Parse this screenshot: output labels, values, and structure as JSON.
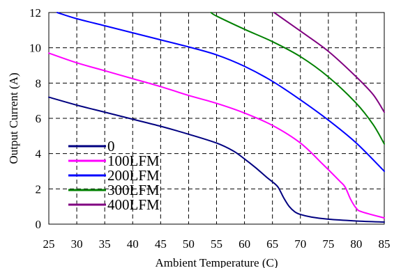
{
  "chart_data": {
    "type": "line",
    "title": "",
    "xlabel": "Ambient Temperature (C)",
    "ylabel": "Output Current (A)",
    "xlim": [
      25,
      85
    ],
    "ylim": [
      0,
      12
    ],
    "xticks": [
      25,
      30,
      35,
      40,
      45,
      50,
      55,
      60,
      65,
      70,
      75,
      80,
      85
    ],
    "yticks": [
      0,
      2,
      4,
      6,
      8,
      10,
      12
    ],
    "grid": true,
    "legend_position": "bottom-left",
    "series": [
      {
        "name": "0",
        "color": "#000080",
        "x": [
          25,
          30,
          35,
          40,
          45,
          50,
          55,
          58,
          60,
          62,
          64,
          65,
          66,
          67,
          68,
          69,
          70,
          72,
          75,
          80,
          85
        ],
        "y": [
          7.2,
          6.75,
          6.35,
          5.95,
          5.55,
          5.1,
          4.6,
          4.15,
          3.7,
          3.2,
          2.65,
          2.4,
          2.1,
          1.5,
          1.0,
          0.7,
          0.55,
          0.4,
          0.28,
          0.18,
          0.12
        ]
      },
      {
        "name": "100LFM",
        "color": "#ff00ff",
        "x": [
          25,
          30,
          35,
          40,
          45,
          50,
          55,
          60,
          65,
          70,
          74,
          77,
          78,
          79,
          80,
          81,
          85
        ],
        "y": [
          9.7,
          9.15,
          8.7,
          8.25,
          7.8,
          7.3,
          6.85,
          6.3,
          5.6,
          4.6,
          3.4,
          2.45,
          2.1,
          1.4,
          0.9,
          0.7,
          0.35
        ]
      },
      {
        "name": "200LFM",
        "color": "#0000ff",
        "x": [
          26.5,
          30,
          35,
          40,
          45,
          50,
          55,
          60,
          65,
          70,
          75,
          80,
          85
        ],
        "y": [
          12,
          11.65,
          11.25,
          10.85,
          10.45,
          10.05,
          9.6,
          8.95,
          8.1,
          7.05,
          5.9,
          4.6,
          3.0
        ]
      },
      {
        "name": "300LFM",
        "color": "#008000",
        "x": [
          54,
          55,
          60,
          65,
          70,
          75,
          80,
          83,
          85
        ],
        "y": [
          12,
          11.8,
          11.05,
          10.35,
          9.5,
          8.35,
          6.85,
          5.65,
          4.55
        ]
      },
      {
        "name": "400LFM",
        "color": "#800080",
        "x": [
          65.3,
          70,
          75,
          80,
          83,
          85
        ],
        "y": [
          12,
          10.95,
          9.8,
          8.35,
          7.35,
          6.35
        ]
      }
    ]
  }
}
